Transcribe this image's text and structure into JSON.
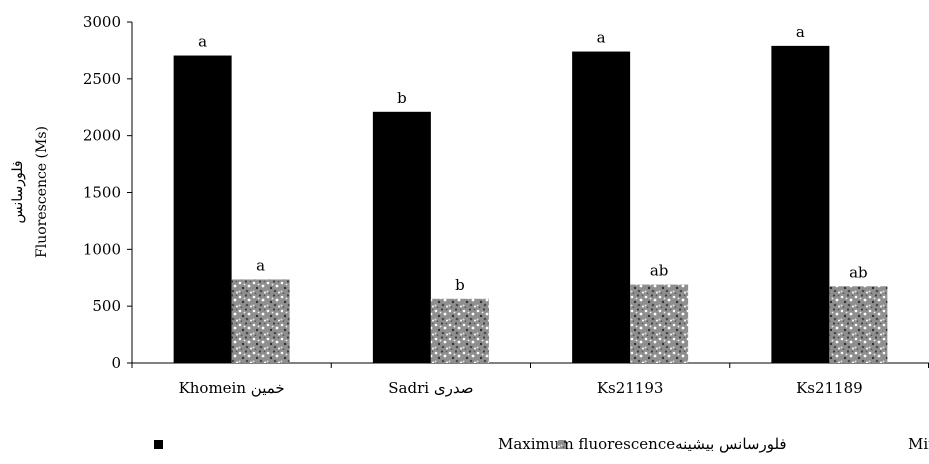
{
  "chart_data": {
    "type": "bar",
    "ylabel": "Fluorescence (Ms)",
    "ylabel_fa": "فلورسانس",
    "ylim": [
      0,
      3000
    ],
    "yticks": [
      0,
      500,
      1000,
      1500,
      2000,
      2500,
      3000
    ],
    "grid": false,
    "legend_position": "bottom",
    "categories": [
      "Khomein خمین",
      "Sadri صدری",
      "Ks21193",
      "Ks21189"
    ],
    "series": [
      {
        "name": "فلورسانس بیشینهMaximum fluorescence",
        "color": "#000000",
        "pattern": "solid",
        "values": [
          2705,
          2210,
          2740,
          2790
        ],
        "labels": [
          "a",
          "b",
          "a",
          "a"
        ]
      },
      {
        "name": "فلورسانس کمینهMinimum fluorescence",
        "color": "#9a9a9a",
        "pattern": "speckled",
        "values": [
          735,
          565,
          690,
          675
        ],
        "labels": [
          "a",
          "b",
          "ab",
          "ab"
        ]
      }
    ]
  }
}
